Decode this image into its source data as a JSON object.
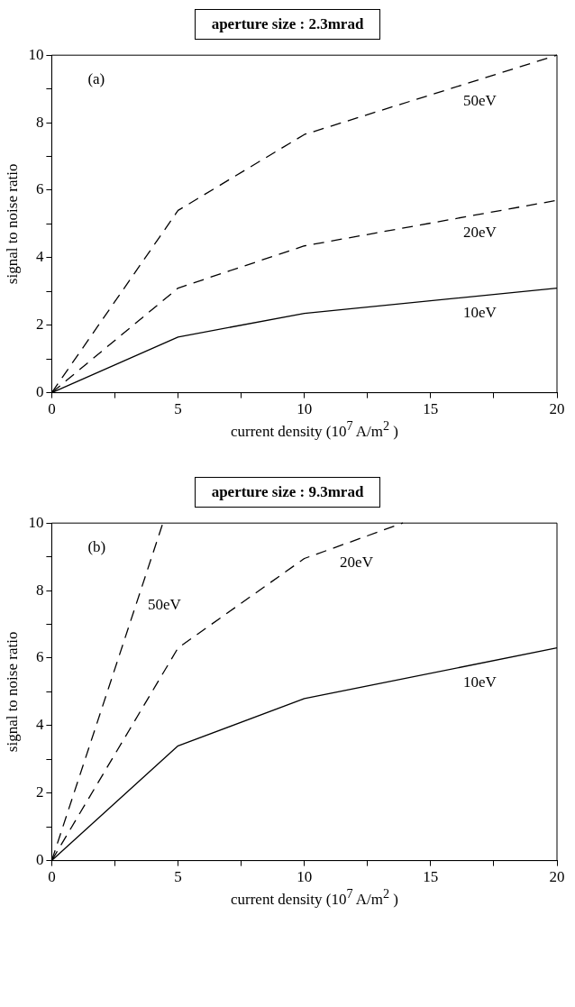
{
  "chart_data": [
    {
      "type": "line",
      "title": "aperture size : 2.3mrad",
      "xlabel": "current density (10$^{7}$ A/m$^{2}$ )",
      "ylabel": "signal to noise ratio",
      "annotations": [
        "(a)"
      ],
      "xlim": [
        0,
        20
      ],
      "xticks": [
        0,
        {
          "value": 2.5,
          "label": null
        },
        5,
        {
          "value": 7.5,
          "label": null
        },
        10,
        {
          "value": 12.5,
          "label": null
        },
        15,
        {
          "value": 17.5,
          "label": null
        },
        20
      ],
      "ylim": [
        0,
        10
      ],
      "yticks": [
        0,
        {
          "value": 1,
          "label": null
        },
        2,
        {
          "value": 3,
          "label": null
        },
        4,
        {
          "value": 5,
          "label": null
        },
        6,
        {
          "value": 7,
          "label": null
        },
        8,
        {
          "value": 9,
          "label": null
        },
        10
      ],
      "grid": false,
      "legend": false,
      "marker": "none",
      "series": [
        {
          "name": "50eV",
          "color": "#000000",
          "line_style": "dashed",
          "x": [
            0,
            5,
            10,
            20
          ],
          "values": [
            0,
            5.4,
            7.65,
            10
          ]
        },
        {
          "name": "20eV",
          "color": "#000000",
          "line_style": "dashed",
          "x": [
            0,
            5,
            10,
            20
          ],
          "values": [
            0,
            3.1,
            4.35,
            5.7
          ]
        },
        {
          "name": "10eV",
          "color": "#000000",
          "line_style": "solid",
          "x": [
            0,
            5,
            10,
            20
          ],
          "values": [
            0,
            1.65,
            2.35,
            3.1
          ]
        }
      ]
    },
    {
      "type": "line",
      "title": "aperture size : 9.3mrad",
      "xlabel": "current density (10$^{7}$ A/m$^{2}$ )",
      "ylabel": "signal to noise ratio",
      "annotations": [
        "(b)"
      ],
      "xlim": [
        0,
        20
      ],
      "xticks": [
        0,
        {
          "value": 2.5,
          "label": null
        },
        5,
        {
          "value": 7.5,
          "label": null
        },
        10,
        {
          "value": 12.5,
          "label": null
        },
        15,
        {
          "value": 17.5,
          "label": null
        },
        20
      ],
      "ylim": [
        0,
        10
      ],
      "yticks": [
        0,
        {
          "value": 1,
          "label": null
        },
        2,
        {
          "value": 3,
          "label": null
        },
        4,
        {
          "value": 5,
          "label": null
        },
        6,
        {
          "value": 7,
          "label": null
        },
        8,
        {
          "value": 9,
          "label": null
        },
        10
      ],
      "grid": false,
      "legend": false,
      "marker": "none",
      "series": [
        {
          "name": "50eV",
          "color": "#000000",
          "line_style": "dashed",
          "x": [
            0,
            4.4
          ],
          "values": [
            0,
            10
          ]
        },
        {
          "name": "20eV",
          "color": "#000000",
          "line_style": "dashed",
          "x": [
            0,
            5,
            10,
            13.9
          ],
          "values": [
            0,
            6.3,
            8.95,
            10
          ]
        },
        {
          "name": "10eV",
          "color": "#000000",
          "line_style": "solid",
          "x": [
            0,
            5,
            10,
            20
          ],
          "values": [
            0,
            3.4,
            4.8,
            6.3
          ]
        }
      ]
    }
  ]
}
